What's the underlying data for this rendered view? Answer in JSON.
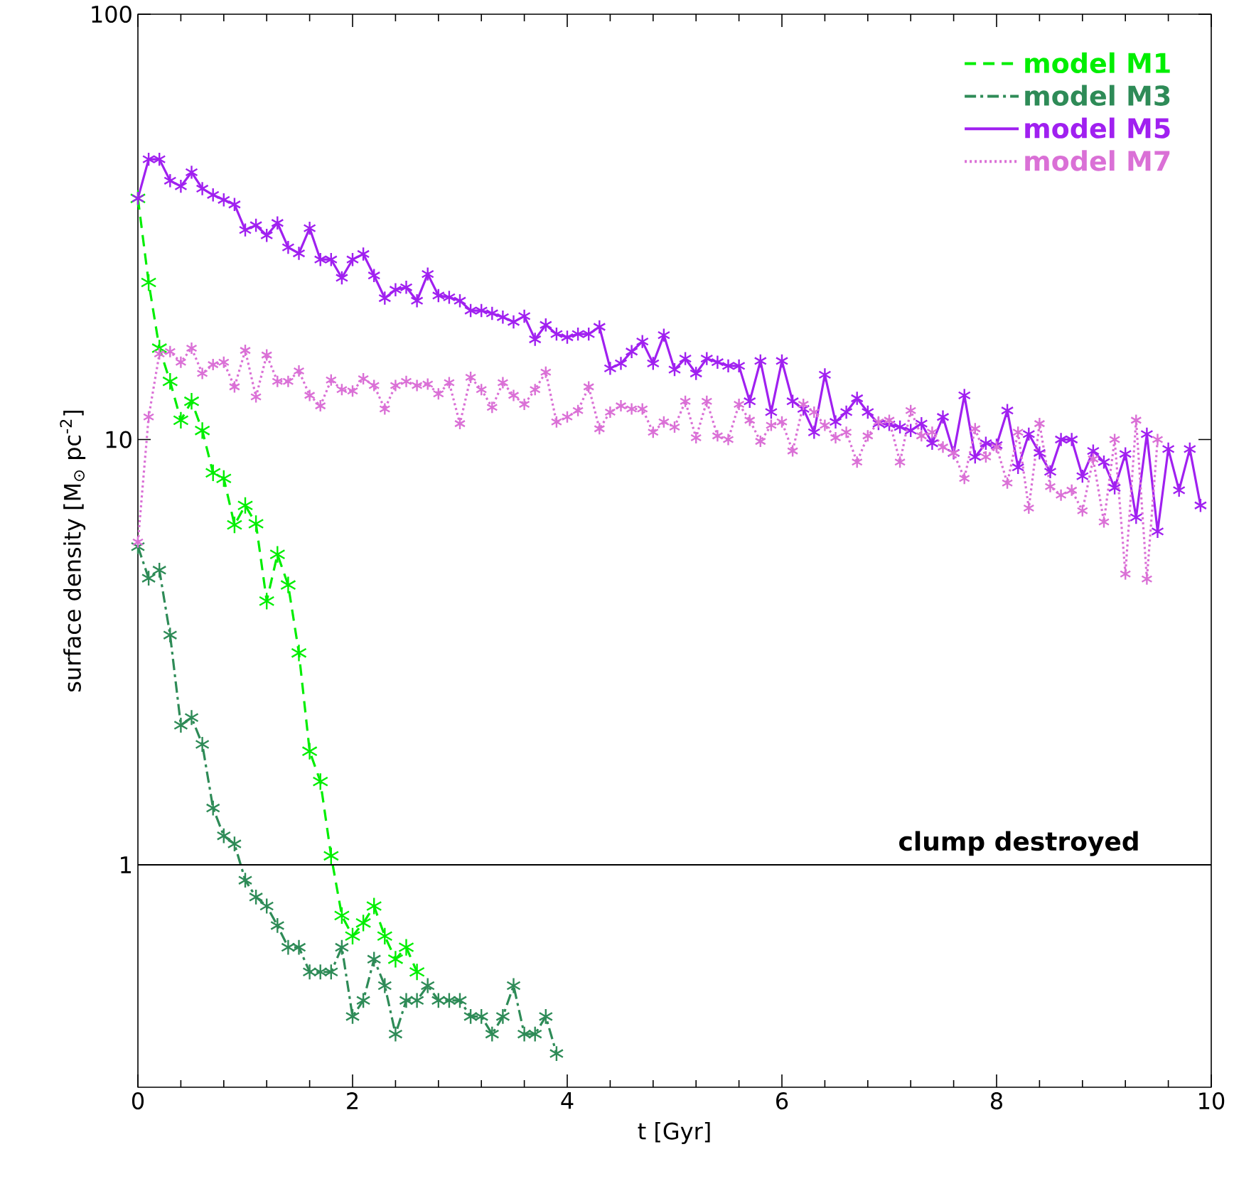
{
  "chart_data": {
    "type": "line",
    "xlabel": "t [Gyr]",
    "ylabel": "surface density [M$_{⊙}$ pc$^{-2}$]",
    "log": "y",
    "xlim": [
      0,
      10
    ],
    "ylim": [
      0.3,
      100
    ],
    "xticks": [
      0,
      2,
      4,
      6,
      8,
      10
    ],
    "yticks": [
      1,
      10,
      100
    ],
    "grid": false,
    "legend": "top right",
    "marker": "cross",
    "ref_lines": [
      {
        "axis": "y",
        "value": 1,
        "label": "clump destroyed",
        "color": "#000000",
        "line_style": "solid"
      }
    ],
    "series": [
      {
        "name": "model M1",
        "color": "#00ee00",
        "line_style": "dashed",
        "x": [
          0,
          0.1,
          0.2,
          0.3,
          0.4,
          0.5,
          0.6,
          0.7,
          0.8,
          0.9,
          1.0,
          1.1,
          1.2,
          1.3,
          1.4,
          1.5,
          1.6,
          1.7,
          1.8,
          1.9,
          2.0,
          2.1,
          2.2,
          2.3,
          2.4,
          2.5,
          2.6
        ],
        "values": [
          36.9,
          23.4,
          16.4,
          13.7,
          11.1,
          12.3,
          10.5,
          8.35,
          8.1,
          6.3,
          7.0,
          6.34,
          4.17,
          5.37,
          4.55,
          3.15,
          1.85,
          1.57,
          1.05,
          0.76,
          0.68,
          0.73,
          0.8,
          0.68,
          0.6,
          0.64,
          0.56
        ]
      },
      {
        "name": "model M3",
        "color": "#2e8b57",
        "line_style": "dashdot",
        "x": [
          0,
          0.1,
          0.2,
          0.3,
          0.4,
          0.5,
          0.6,
          0.7,
          0.8,
          0.9,
          1.0,
          1.1,
          1.2,
          1.3,
          1.4,
          1.5,
          1.6,
          1.7,
          1.8,
          1.9,
          2.0,
          2.1,
          2.2,
          2.3,
          2.4,
          2.5,
          2.6,
          2.7,
          2.8,
          2.9,
          3.0,
          3.1,
          3.2,
          3.3,
          3.4,
          3.5,
          3.6,
          3.7,
          3.8,
          3.9
        ],
        "values": [
          5.6,
          4.72,
          4.93,
          3.47,
          2.13,
          2.22,
          1.92,
          1.36,
          1.17,
          1.12,
          0.92,
          0.84,
          0.8,
          0.72,
          0.64,
          0.64,
          0.56,
          0.56,
          0.56,
          0.64,
          0.44,
          0.48,
          0.6,
          0.52,
          0.4,
          0.48,
          0.48,
          0.52,
          0.48,
          0.48,
          0.48,
          0.44,
          0.44,
          0.4,
          0.44,
          0.52,
          0.4,
          0.4,
          0.44,
          0.36
        ]
      },
      {
        "name": "model M5",
        "color": "#a020f0",
        "line_style": "solid",
        "x": [
          0,
          0.1,
          0.2,
          0.3,
          0.4,
          0.5,
          0.6,
          0.7,
          0.8,
          0.9,
          1.0,
          1.1,
          1.2,
          1.3,
          1.4,
          1.5,
          1.6,
          1.7,
          1.8,
          1.9,
          2.0,
          2.1,
          2.2,
          2.3,
          2.4,
          2.5,
          2.6,
          2.7,
          2.8,
          2.9,
          3.0,
          3.1,
          3.2,
          3.3,
          3.4,
          3.5,
          3.6,
          3.7,
          3.8,
          3.9,
          4.0,
          4.1,
          4.2,
          4.3,
          4.4,
          4.5,
          4.6,
          4.7,
          4.8,
          4.9,
          5.0,
          5.1,
          5.2,
          5.3,
          5.4,
          5.5,
          5.6,
          5.7,
          5.8,
          5.9,
          6.0,
          6.1,
          6.2,
          6.3,
          6.4,
          6.5,
          6.6,
          6.7,
          6.8,
          6.9,
          7.0,
          7.1,
          7.2,
          7.3,
          7.4,
          7.5,
          7.6,
          7.7,
          7.8,
          7.9,
          8.0,
          8.1,
          8.2,
          8.3,
          8.4,
          8.5,
          8.6,
          8.7,
          8.8,
          8.9,
          9.0,
          9.1,
          9.2,
          9.3,
          9.4,
          9.5,
          9.6,
          9.7,
          9.8,
          9.9
        ],
        "values": [
          36.9,
          45.6,
          45.6,
          40.6,
          39.4,
          42.5,
          38.9,
          37.6,
          36.6,
          35.7,
          31.1,
          31.9,
          30.2,
          32.3,
          28.3,
          27.4,
          31.4,
          26.5,
          26.5,
          24.0,
          26.5,
          27.3,
          24.3,
          21.5,
          22.5,
          22.8,
          21.2,
          24.5,
          21.8,
          21.6,
          21.2,
          20.1,
          20.1,
          19.8,
          19.4,
          18.9,
          19.5,
          17.2,
          18.6,
          17.7,
          17.4,
          17.7,
          17.7,
          18.4,
          14.7,
          15.1,
          16.1,
          17.0,
          15.1,
          17.6,
          14.6,
          15.5,
          14.3,
          15.5,
          15.2,
          14.9,
          14.9,
          12.3,
          15.3,
          11.6,
          15.3,
          12.3,
          11.8,
          10.4,
          14.2,
          11.0,
          11.6,
          12.5,
          11.6,
          10.9,
          10.85,
          10.7,
          10.5,
          10.9,
          9.8,
          11.3,
          9.3,
          12.7,
          9.1,
          9.8,
          9.7,
          11.7,
          8.6,
          10.3,
          9.3,
          8.4,
          10.0,
          10.0,
          8.2,
          9.4,
          8.85,
          7.7,
          9.25,
          6.56,
          10.3,
          6.08,
          9.5,
          7.6,
          9.5,
          7.0
        ]
      },
      {
        "name": "model M7",
        "color": "#da70d6",
        "line_style": "dotted",
        "x": [
          0,
          0.1,
          0.2,
          0.3,
          0.4,
          0.5,
          0.6,
          0.7,
          0.8,
          0.9,
          1.0,
          1.1,
          1.2,
          1.3,
          1.4,
          1.5,
          1.6,
          1.7,
          1.8,
          1.9,
          2.0,
          2.1,
          2.2,
          2.3,
          2.4,
          2.5,
          2.6,
          2.7,
          2.8,
          2.9,
          3.0,
          3.1,
          3.2,
          3.3,
          3.4,
          3.5,
          3.6,
          3.7,
          3.8,
          3.9,
          4.0,
          4.1,
          4.2,
          4.3,
          4.4,
          4.5,
          4.6,
          4.7,
          4.8,
          4.9,
          5.0,
          5.1,
          5.2,
          5.3,
          5.4,
          5.5,
          5.6,
          5.7,
          5.8,
          5.9,
          6.0,
          6.1,
          6.2,
          6.3,
          6.4,
          6.5,
          6.6,
          6.7,
          6.8,
          6.9,
          7.0,
          7.1,
          7.2,
          7.3,
          7.4,
          7.5,
          7.6,
          7.7,
          7.8,
          7.9,
          8.0,
          8.1,
          8.2,
          8.3,
          8.4,
          8.5,
          8.6,
          8.7,
          8.8,
          8.9,
          9.0,
          9.1,
          9.2,
          9.3,
          9.4,
          9.5
        ],
        "values": [
          5.74,
          11.3,
          15.9,
          16.1,
          15.2,
          16.4,
          14.3,
          15.0,
          15.2,
          13.3,
          16.2,
          12.6,
          15.8,
          13.7,
          13.7,
          14.5,
          12.7,
          12.0,
          13.8,
          13.1,
          13.0,
          13.9,
          13.4,
          11.8,
          13.4,
          13.7,
          13.4,
          13.5,
          12.8,
          13.6,
          10.9,
          14.0,
          13.1,
          11.9,
          13.6,
          12.7,
          12.1,
          13.1,
          14.4,
          11.0,
          11.3,
          11.7,
          13.3,
          10.6,
          11.6,
          12.0,
          11.8,
          11.8,
          10.4,
          11.0,
          10.7,
          12.3,
          10.1,
          12.3,
          10.2,
          10.0,
          12.1,
          11.1,
          9.9,
          10.8,
          11.0,
          9.4,
          12.1,
          11.6,
          10.8,
          10.1,
          10.4,
          8.85,
          10.2,
          11.0,
          11.1,
          8.85,
          11.7,
          10.2,
          10.4,
          9.6,
          9.3,
          8.1,
          10.6,
          9.1,
          9.6,
          7.9,
          10.4,
          6.9,
          10.9,
          7.75,
          7.4,
          7.6,
          6.8,
          9.0,
          6.4,
          10.0,
          4.83,
          11.1,
          4.7,
          10.0
        ]
      }
    ]
  }
}
